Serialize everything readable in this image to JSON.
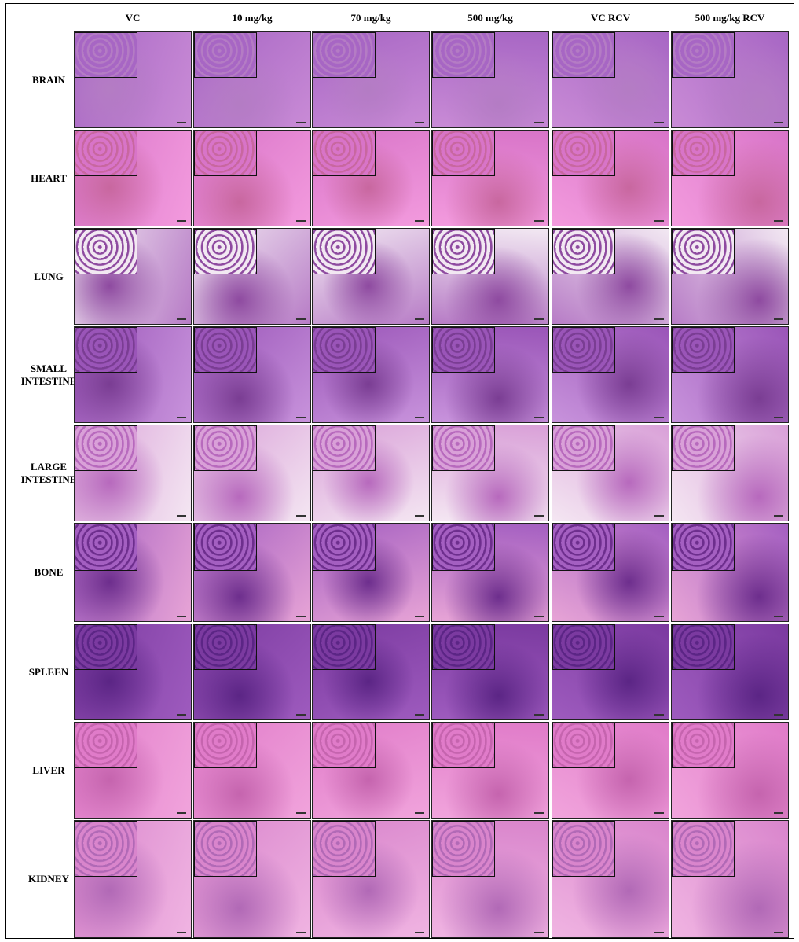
{
  "columns": [
    "VC",
    "10 mg/kg",
    "70 mg/kg",
    "500 mg/kg",
    "VC RCV",
    "500 mg/kg RCV"
  ],
  "rows": [
    "BRAIN",
    "HEART",
    "LUNG",
    "SMALL INTESTINE",
    "LARGE INTESTINE",
    "BONE",
    "SPLEEN",
    "LIVER",
    "KIDNEY"
  ]
}
